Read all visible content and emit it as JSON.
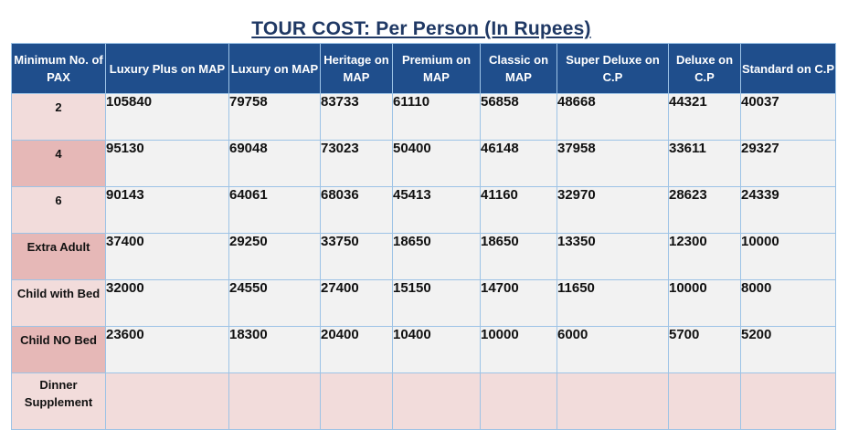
{
  "title": "TOUR COST: Per Person (In Rupees)",
  "table": {
    "headers": [
      "Minimum No. of PAX",
      "Luxury Plus on MAP",
      "Luxury on MAP",
      "Heritage on MAP",
      "Premium on MAP",
      "Classic on MAP",
      "Super Deluxe on C.P",
      "Deluxe on C.P",
      "Standard on C.P"
    ],
    "rows": [
      {
        "label": "2",
        "values": [
          "105840",
          "79758",
          "83733",
          "61110",
          "56858",
          "48668",
          "44321",
          "40037"
        ]
      },
      {
        "label": "4",
        "values": [
          "95130",
          "69048",
          "73023",
          "50400",
          "46148",
          "37958",
          "33611",
          "29327"
        ]
      },
      {
        "label": "6",
        "values": [
          "90143",
          "64061",
          "68036",
          "45413",
          "41160",
          "32970",
          "28623",
          "24339"
        ]
      },
      {
        "label": "Extra Adult",
        "values": [
          "37400",
          "29250",
          "33750",
          "18650",
          "18650",
          "13350",
          "12300",
          "10000"
        ]
      },
      {
        "label": "Child with Bed",
        "values": [
          "32000",
          "24550",
          "27400",
          "15150",
          "14700",
          "11650",
          "10000",
          "8000"
        ]
      },
      {
        "label": "Child NO Bed",
        "values": [
          "23600",
          "18300",
          "20400",
          "10400",
          "10000",
          "6000",
          "5700",
          "5200"
        ]
      },
      {
        "label": "Dinner Supplement",
        "values": [
          "",
          "",
          "",
          "",
          "",
          "",
          "",
          ""
        ]
      }
    ]
  }
}
